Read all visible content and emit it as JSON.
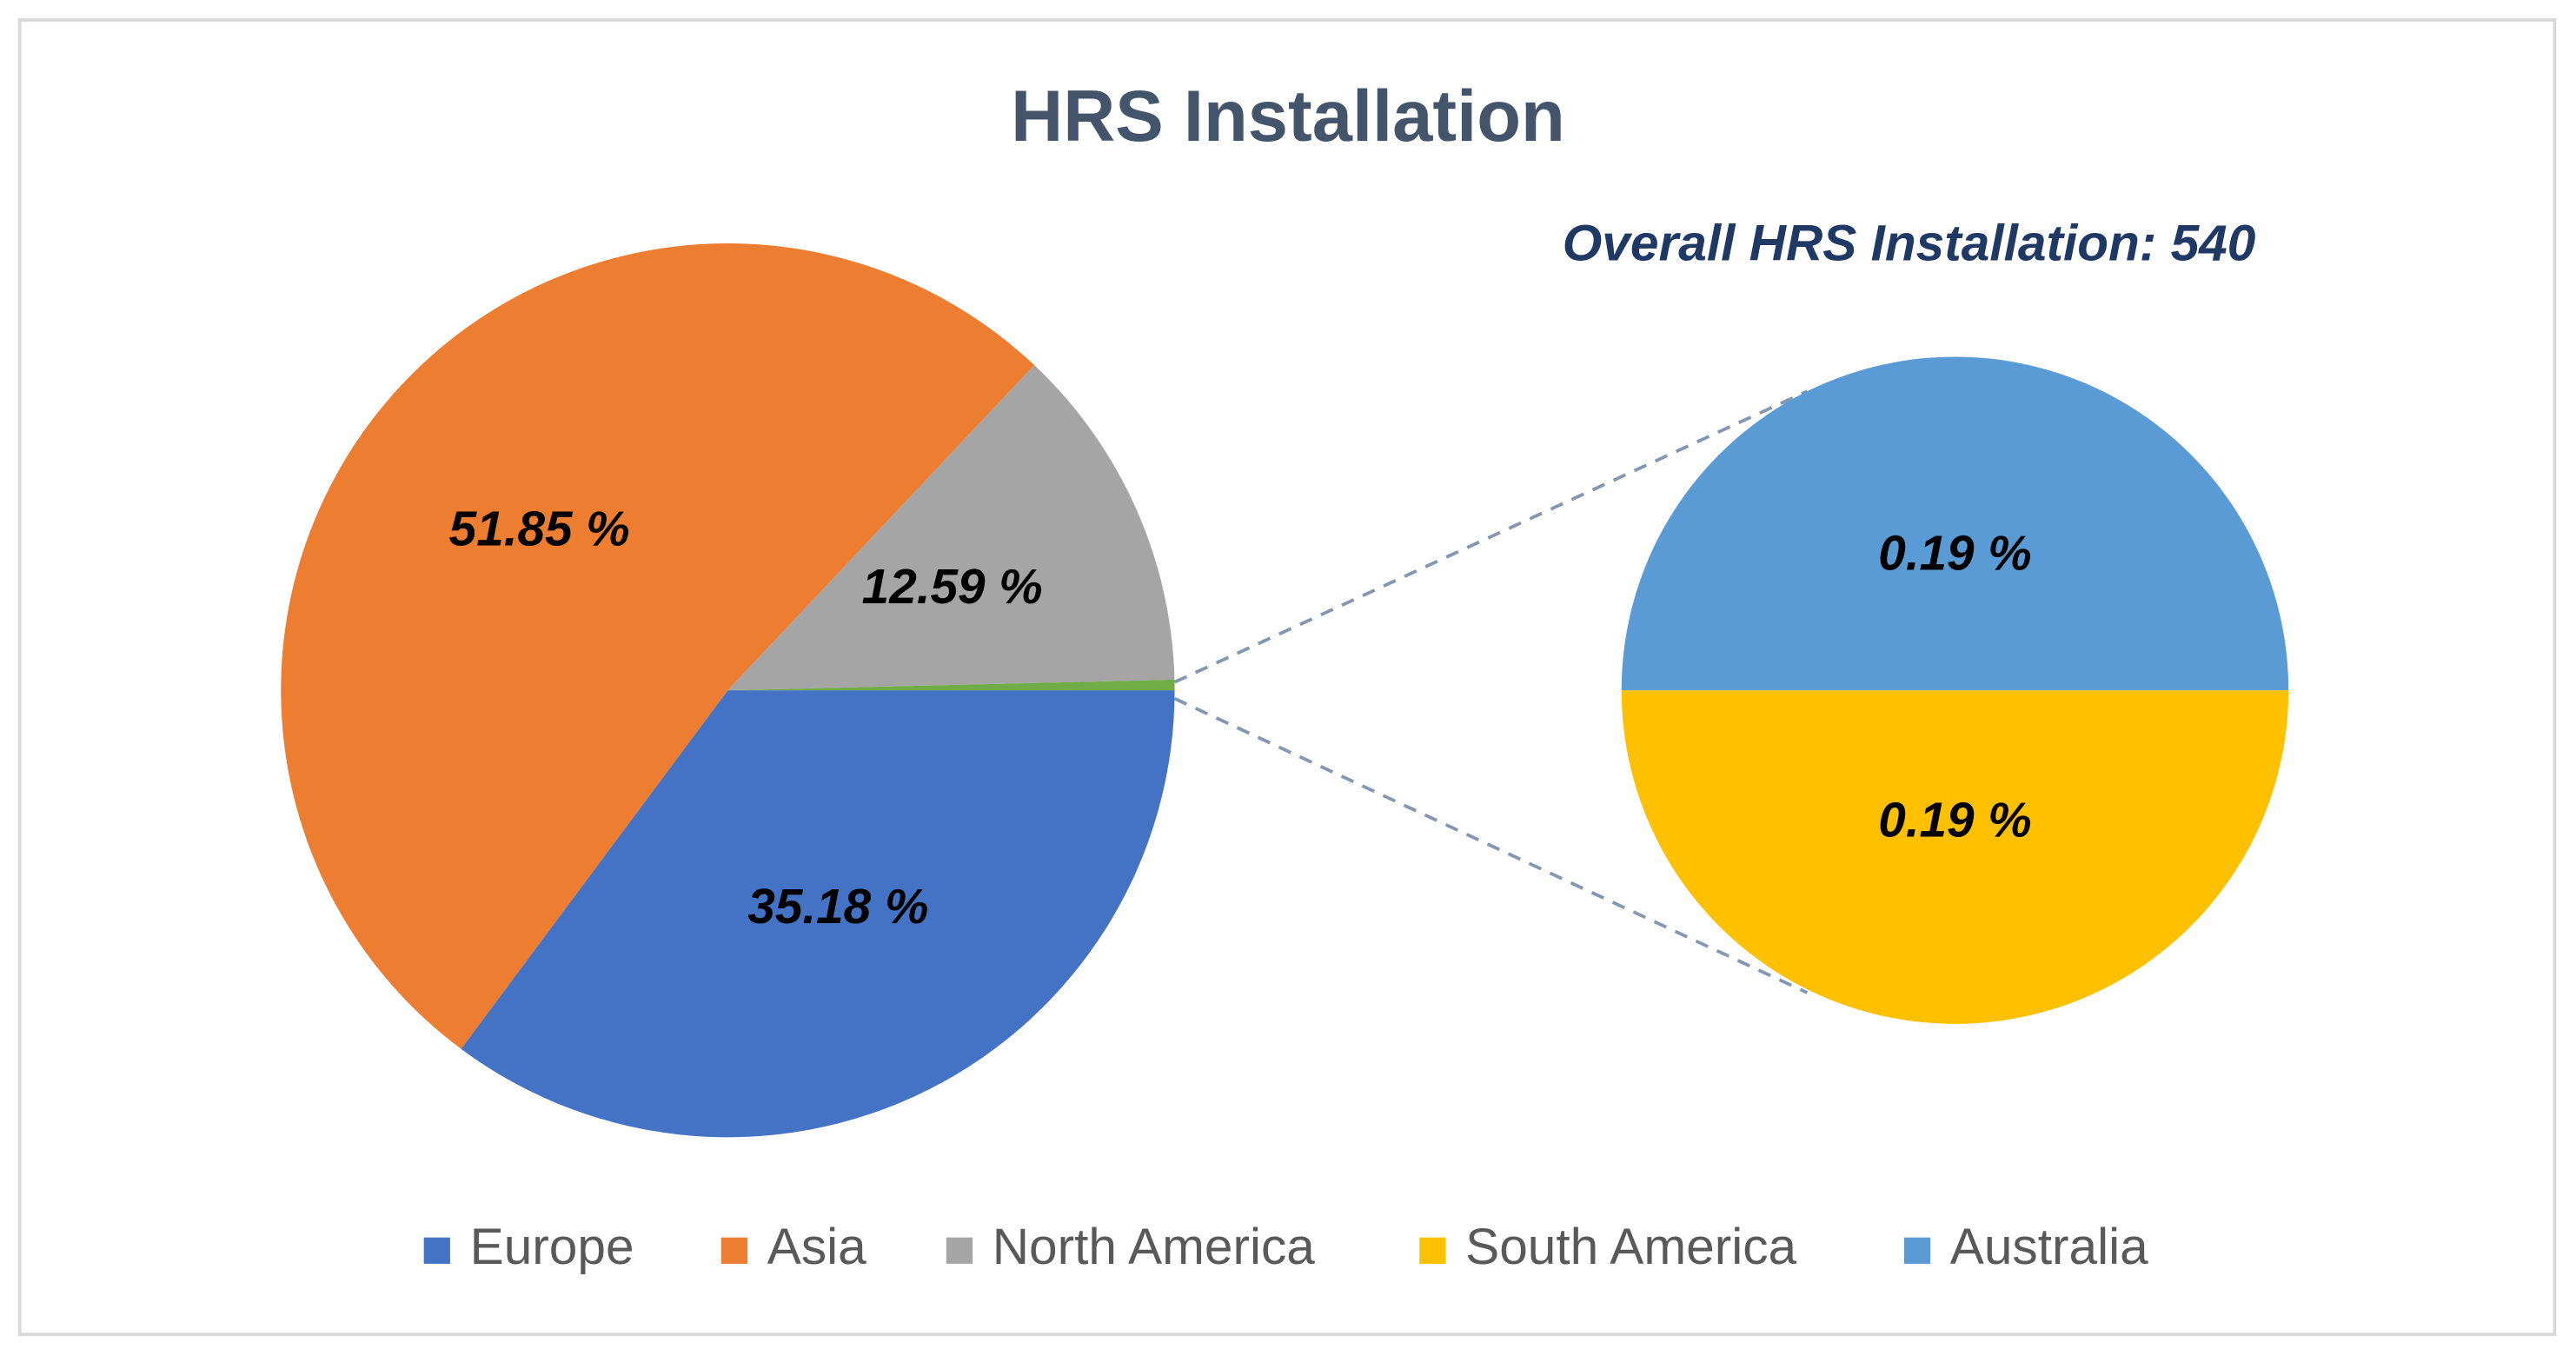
{
  "chart_data": {
    "type": "pie-of-pie",
    "title": "HRS Installation",
    "subtitle": "Overall HRS Installation: 540",
    "categories": [
      "Europe",
      "Asia",
      "North America",
      "South America",
      "Australia"
    ],
    "values": [
      35.18,
      51.85,
      12.59,
      0.19,
      0.19
    ],
    "value_labels": [
      "35.18 %",
      "51.85 %",
      "12.59 %",
      "0.19 %",
      "0.19 %"
    ],
    "colors": [
      "#4472c4",
      "#ed7d31",
      "#a5a5a5",
      "#ffc000",
      "#5b9bd5"
    ],
    "legend": "bottom"
  }
}
